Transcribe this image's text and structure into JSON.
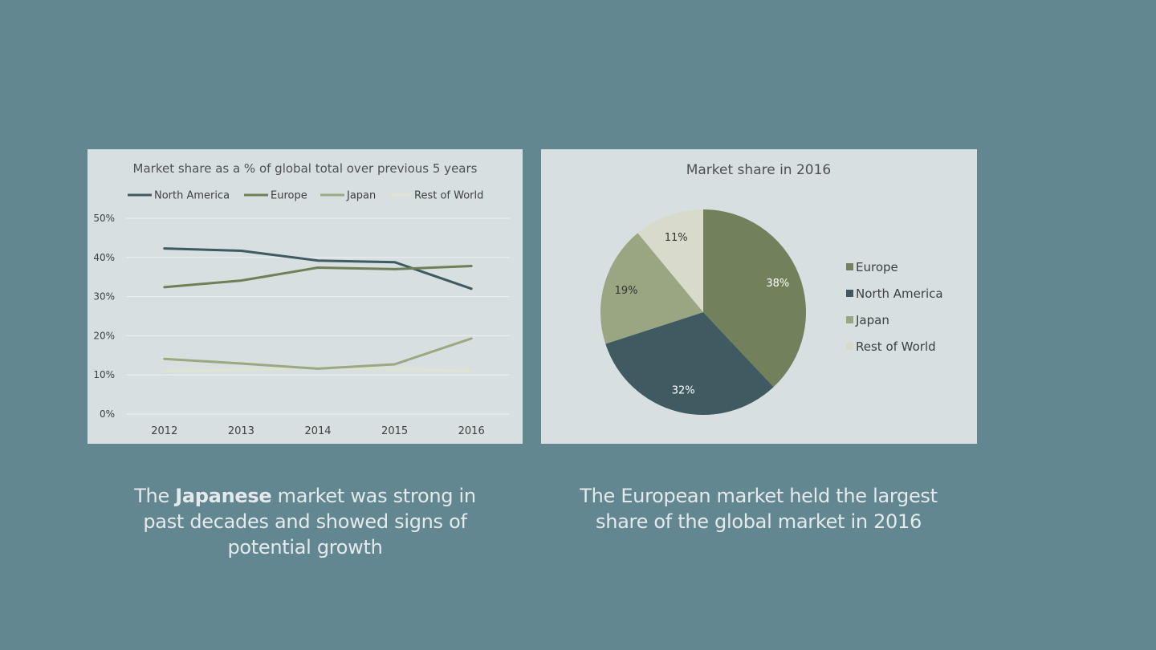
{
  "captions": {
    "left": {
      "before": "The ",
      "bold": "Japanese",
      "after": " market was strong in past decades and showed signs of potential growth"
    },
    "right": "The European market held the largest share of the global market in 2016"
  },
  "chart_data": [
    {
      "type": "line",
      "title": "Market share as a % of global total over previous 5 years",
      "x": [
        "2012",
        "2013",
        "2014",
        "2015",
        "2016"
      ],
      "ylim": [
        0,
        50
      ],
      "yticks": [
        "0%",
        "10%",
        "20%",
        "30%",
        "40%",
        "50%"
      ],
      "grid": true,
      "legend_position": "top",
      "series": [
        {
          "name": "North America",
          "color": "#3f5a61",
          "values": [
            42.3,
            41.7,
            39.2,
            38.8,
            32.0
          ]
        },
        {
          "name": "Europe",
          "color": "#6f7f57",
          "values": [
            32.4,
            34.1,
            37.4,
            37.0,
            37.8
          ]
        },
        {
          "name": "Japan",
          "color": "#9ba882",
          "values": [
            14.1,
            12.9,
            11.6,
            12.7,
            19.3
          ]
        },
        {
          "name": "Rest of World",
          "color": "#dfe2d0",
          "values": [
            10.9,
            11.4,
            11.8,
            11.5,
            11.0
          ]
        }
      ]
    },
    {
      "type": "pie",
      "title": "Market share in 2016",
      "legend_position": "right",
      "slices": [
        {
          "name": "Europe",
          "value": 38,
          "label": "38%",
          "color": "#72815b",
          "label_color": "#ffffff"
        },
        {
          "name": "North America",
          "value": 32,
          "label": "32%",
          "color": "#405a61",
          "label_color": "#ffffff"
        },
        {
          "name": "Japan",
          "value": 19,
          "label": "19%",
          "color": "#9aa682",
          "label_color": "#333333"
        },
        {
          "name": "Rest of World",
          "value": 11,
          "label": "11%",
          "color": "#d8dbcc",
          "label_color": "#333333"
        }
      ]
    }
  ]
}
